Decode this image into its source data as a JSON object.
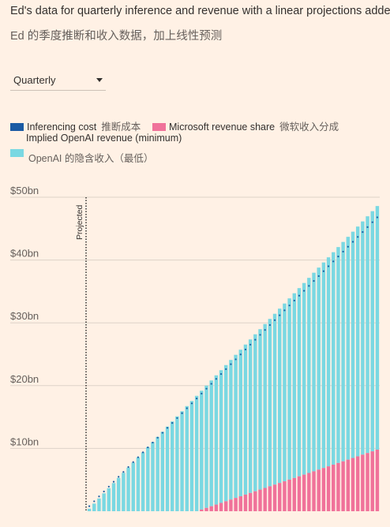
{
  "header": {
    "title": "Ed's data for quarterly inference and revenue with a linear projections added",
    "subtitle": "Ed 的季度推断和收入数据，加上线性预测"
  },
  "dropdown": {
    "selected": "Quarterly",
    "icon": "chevron-down-icon"
  },
  "legend": [
    {
      "label": "Inferencing cost",
      "label_cn": "推断成本",
      "color": "#1a5aa3"
    },
    {
      "label": "Microsoft revenue share",
      "label_cn": "微软收入分成",
      "color": "#f0729a"
    },
    {
      "label": "Implied OpenAI revenue (minimum)",
      "label_cn": "OpenAI 的隐含收入（最低）",
      "color": "#7ad8e2"
    }
  ],
  "chart_data": {
    "type": "bar",
    "stacked": true,
    "ylim": [
      0,
      50
    ],
    "yticks": [
      "$50bn",
      "$40bn",
      "$30bn",
      "$20bn",
      "$10bn"
    ],
    "ytick_values": [
      50,
      40,
      30,
      20,
      10
    ],
    "grid": true,
    "annotation": "Projected",
    "bar_count": 60,
    "series": [
      {
        "name": "Microsoft revenue share",
        "color": "#f0729a",
        "start": 0,
        "end": 9.8,
        "zero_until": 23
      },
      {
        "name": "Implied OpenAI revenue (minimum)",
        "color": "#7ad8e2",
        "start": 0.4,
        "end": 48.6
      },
      {
        "name": "Inferencing cost",
        "color": "#1a5aa3",
        "style": "dotted-line",
        "start": 0.8,
        "end": 46.8
      }
    ]
  }
}
